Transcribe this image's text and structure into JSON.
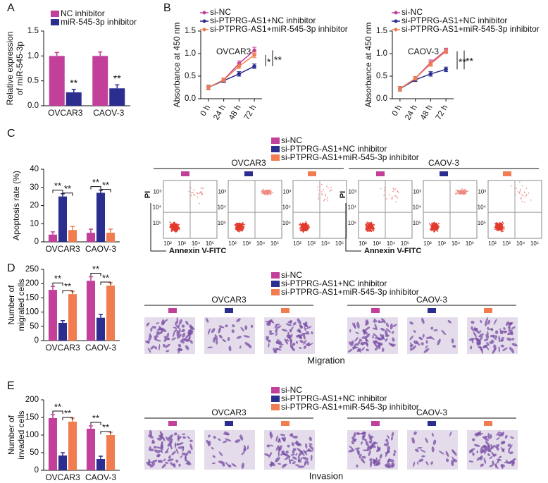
{
  "chart_data": [
    {
      "type": "bar",
      "panel": "A",
      "ylabel": [
        "Relative expression",
        "of miR-545-3p"
      ],
      "categories": [
        "OVCAR3",
        "CAOV-3"
      ],
      "series": [
        {
          "name": "NC inhibitor",
          "color": "#c2409a",
          "values": [
            1.0,
            1.0
          ],
          "errors": [
            0.07,
            0.08
          ]
        },
        {
          "name": "miR-545-3p inhibitor",
          "color": "#2b2d8f",
          "values": [
            0.27,
            0.35
          ],
          "errors": [
            0.06,
            0.07
          ]
        }
      ],
      "ylim": [
        0,
        1.5
      ],
      "yticks": [
        {
          "value": 0,
          "label": "0.0"
        },
        0.5,
        {
          "value": 1,
          "label": "1.0"
        },
        1.5
      ],
      "annotations": [
        "**",
        "**"
      ]
    },
    {
      "type": "line",
      "panel": "B",
      "ylabel": [
        "Absorbance at 450 nm"
      ],
      "label": "OVCAR3",
      "categories": [
        "0 h",
        "24 h",
        "48 h",
        "72 h"
      ],
      "series": [
        {
          "name": "si-NC",
          "color": "#c2409a",
          "values": [
            0.25,
            0.42,
            0.78,
            1.07
          ],
          "errors": [
            0.05,
            0.04,
            0.06,
            0.07
          ]
        },
        {
          "name": "si-PTPRG-AS1+NC inhibitor",
          "color": "#2b2d8f",
          "values": [
            0.25,
            0.4,
            0.55,
            0.72
          ],
          "errors": [
            0.05,
            0.04,
            0.05,
            0.05
          ]
        },
        {
          "name": "si-PTPRG-AS1+miR-545-3p inhibitor",
          "color": "#f07c50",
          "values": [
            0.25,
            0.42,
            0.72,
            0.97
          ],
          "errors": [
            0.05,
            0.04,
            0.05,
            0.06
          ]
        }
      ],
      "ylim": [
        0,
        1.5
      ],
      "yticks": [
        {
          "value": 0,
          "label": "0.0"
        },
        0.5,
        {
          "value": 1,
          "label": "1.0"
        },
        1.5
      ],
      "annotations": [
        "*",
        "**"
      ]
    },
    {
      "type": "line",
      "ylabel": [
        "Absorbance at 450 nm"
      ],
      "label": "CAOV-3",
      "categories": [
        "0 h",
        "24 h",
        "48 h",
        "72 h"
      ],
      "series": [
        {
          "name": "si-NC",
          "color": "#c2409a",
          "values": [
            0.22,
            0.45,
            0.8,
            1.07
          ],
          "errors": [
            0.05,
            0.04,
            0.06,
            0.05
          ]
        },
        {
          "name": "si-PTPRG-AS1+NC inhibitor",
          "color": "#2b2d8f",
          "values": [
            0.22,
            0.42,
            0.55,
            0.65
          ],
          "errors": [
            0.05,
            0.04,
            0.05,
            0.05
          ]
        },
        {
          "name": "si-PTPRG-AS1+miR-545-3p inhibitor",
          "color": "#f07c50",
          "values": [
            0.22,
            0.45,
            0.77,
            1.05
          ],
          "errors": [
            0.05,
            0.04,
            0.05,
            0.05
          ]
        }
      ],
      "ylim": [
        0,
        1.5
      ],
      "yticks": [
        {
          "value": 0,
          "label": "0.0"
        },
        0.5,
        {
          "value": 1,
          "label": "1.0"
        },
        1.5
      ],
      "annotations": [
        "**",
        "**"
      ]
    },
    {
      "type": "bar",
      "panel": "C",
      "ylabel": [
        "Apoptosis rate (%)"
      ],
      "categories": [
        "OVCAR3",
        "CAOV-3"
      ],
      "series": [
        {
          "name": "si-NC",
          "color": "#c2409a",
          "values": [
            4,
            5
          ],
          "errors": [
            1.5,
            2
          ]
        },
        {
          "name": "si-PTPRG-AS1+NC inhibitor",
          "color": "#2b2d8f",
          "values": [
            25,
            27
          ],
          "errors": [
            1.5,
            1.5
          ]
        },
        {
          "name": "si-PTPRG-AS1+miR-545-3p inhibitor",
          "color": "#f07c50",
          "values": [
            6.5,
            5
          ],
          "errors": [
            2,
            2
          ]
        }
      ],
      "ylim": [
        0,
        40
      ],
      "yticks": [
        0,
        10,
        20,
        30,
        40
      ],
      "annotations": [
        "**",
        "**",
        "**",
        "**"
      ],
      "flow": {
        "groups": [
          "OVCAR3",
          "CAOV-3"
        ],
        "xlabel": "Annexin V-FITC",
        "ylabel": "PI",
        "xticks": [
          "10²",
          "10³",
          "10⁴",
          "10⁵"
        ],
        "yticks": [
          "10³",
          "10⁴",
          "10⁵"
        ]
      }
    },
    {
      "type": "bar",
      "panel": "D",
      "ylabel": [
        "Number of",
        "migrated cells"
      ],
      "categories": [
        "OVCAR3",
        "CAOV-3"
      ],
      "series": [
        {
          "name": "si-NC",
          "color": "#c2409a",
          "values": [
            178,
            210
          ],
          "errors": [
            12,
            14
          ]
        },
        {
          "name": "si-PTPRG-AS1+NC inhibitor",
          "color": "#2b2d8f",
          "values": [
            62,
            80
          ],
          "errors": [
            8,
            12
          ]
        },
        {
          "name": "si-PTPRG-AS1+miR-545-3p inhibitor",
          "color": "#f07c50",
          "values": [
            163,
            193
          ],
          "errors": [
            10,
            10
          ]
        }
      ],
      "ylim": [
        0,
        250
      ],
      "yticks": [
        0,
        50,
        100,
        150,
        200,
        250
      ],
      "annotations": [
        "**",
        "**",
        "**",
        "**"
      ],
      "images": {
        "groups": [
          "OVCAR3",
          "CAOV-3"
        ],
        "caption": "Migration"
      }
    },
    {
      "type": "bar",
      "panel": "E",
      "ylabel": [
        "Number of",
        "invaded cells"
      ],
      "categories": [
        "OVCAR3",
        "CAOV-3"
      ],
      "series": [
        {
          "name": "si-NC",
          "color": "#c2409a",
          "values": [
            148,
            118
          ],
          "errors": [
            10,
            8
          ]
        },
        {
          "name": "si-PTPRG-AS1+NC inhibitor",
          "color": "#2b2d8f",
          "values": [
            42,
            32
          ],
          "errors": [
            8,
            8
          ]
        },
        {
          "name": "si-PTPRG-AS1+miR-545-3p inhibitor",
          "color": "#f07c50",
          "values": [
            138,
            100
          ],
          "errors": [
            10,
            8
          ]
        }
      ],
      "ylim": [
        0,
        200
      ],
      "yticks": [
        0,
        50,
        100,
        150,
        200
      ],
      "annotations": [
        "**",
        "**",
        "**",
        "**"
      ],
      "images": {
        "groups": [
          "OVCAR3",
          "CAOV-3"
        ],
        "caption": "Invasion"
      }
    }
  ]
}
